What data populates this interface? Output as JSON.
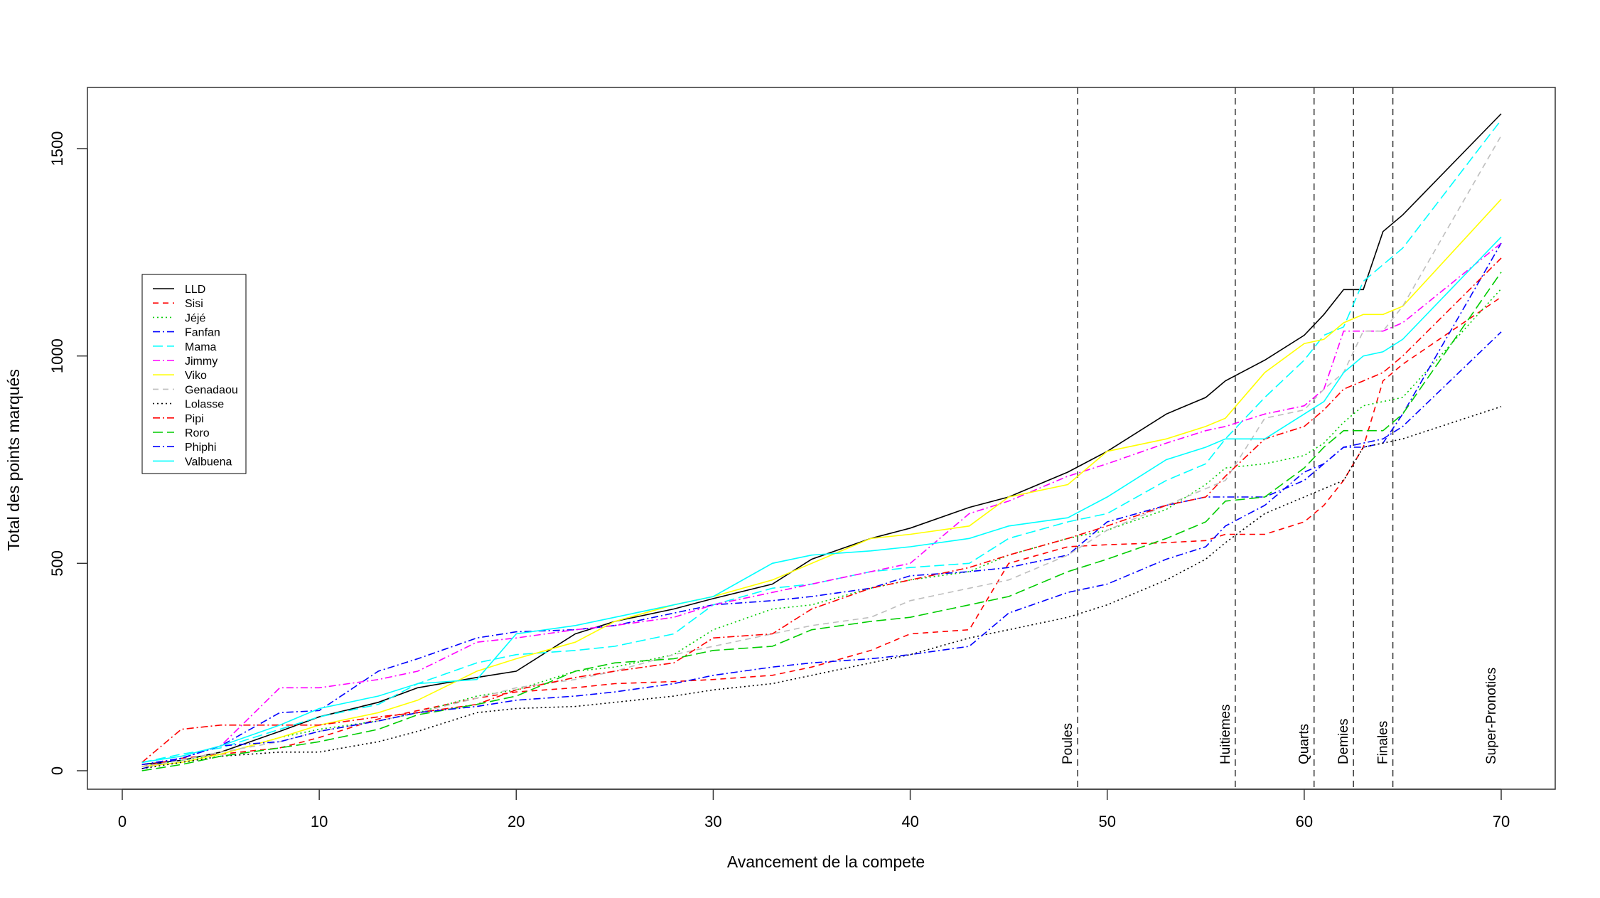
{
  "chart_data": {
    "type": "line",
    "title": "",
    "xlabel": "Avancement de la compete",
    "ylabel": "Total des points marqués",
    "xlim": [
      0,
      70
    ],
    "ylim": [
      0,
      1500
    ],
    "xticks": [
      0,
      10,
      20,
      30,
      40,
      50,
      60,
      70
    ],
    "yticks": [
      0,
      500,
      1000,
      1500
    ],
    "grid": false,
    "legend_position": "left, upper-middle",
    "phases": [
      {
        "label": "Poules",
        "x": 48.5
      },
      {
        "label": "Huitiemes",
        "x": 56.5
      },
      {
        "label": "Quarts",
        "x": 60.5
      },
      {
        "label": "Demies",
        "x": 62.5
      },
      {
        "label": "Finales",
        "x": 64.5
      },
      {
        "label": "Super-Pronotics",
        "x": 70
      }
    ],
    "x": [
      1,
      3,
      5,
      8,
      10,
      13,
      15,
      18,
      20,
      23,
      25,
      28,
      30,
      33,
      35,
      38,
      40,
      43,
      45,
      48,
      50,
      53,
      55,
      56,
      58,
      60,
      61,
      62,
      63,
      64,
      65,
      70
    ],
    "series": [
      {
        "name": "LLD",
        "color": "#000000",
        "dash": "",
        "values": [
          15,
          25,
          45,
          95,
          130,
          165,
          200,
          225,
          240,
          330,
          360,
          390,
          415,
          450,
          510,
          560,
          585,
          635,
          660,
          720,
          770,
          860,
          900,
          940,
          990,
          1050,
          1100,
          1160,
          1160,
          1300,
          1340,
          1584
        ]
      },
      {
        "name": "Sisi",
        "color": "#FF0000",
        "dash": "8,6",
        "values": [
          10,
          30,
          40,
          55,
          80,
          125,
          145,
          175,
          190,
          200,
          210,
          215,
          220,
          230,
          250,
          290,
          330,
          340,
          500,
          540,
          545,
          550,
          555,
          570,
          570,
          600,
          640,
          700,
          780,
          940,
          980,
          1142
        ]
      },
      {
        "name": "Jéjé",
        "color": "#00CC00",
        "dash": "2,4",
        "values": [
          10,
          25,
          40,
          80,
          100,
          120,
          140,
          180,
          195,
          240,
          250,
          280,
          340,
          390,
          400,
          440,
          460,
          480,
          520,
          560,
          580,
          630,
          690,
          730,
          740,
          760,
          790,
          840,
          880,
          890,
          900,
          1162
        ]
      },
      {
        "name": "Fanfan",
        "color": "#0000FF",
        "dash": "10,4,2,4",
        "values": [
          5,
          30,
          60,
          140,
          145,
          240,
          270,
          320,
          335,
          340,
          350,
          380,
          400,
          410,
          420,
          440,
          470,
          480,
          490,
          520,
          600,
          640,
          660,
          660,
          660,
          700,
          740,
          780,
          780,
          790,
          860,
          1272
        ]
      },
      {
        "name": "Mama",
        "color": "#00FFFF",
        "dash": "14,6",
        "values": [
          20,
          40,
          55,
          100,
          130,
          160,
          210,
          260,
          280,
          290,
          300,
          330,
          400,
          440,
          450,
          480,
          490,
          500,
          560,
          600,
          620,
          700,
          740,
          800,
          900,
          990,
          1050,
          1070,
          1180,
          1220,
          1260,
          1569
        ]
      },
      {
        "name": "Jimmy",
        "color": "#FF00FF",
        "dash": "10,4,2,4",
        "values": [
          15,
          30,
          60,
          200,
          200,
          220,
          240,
          310,
          320,
          340,
          350,
          370,
          400,
          430,
          450,
          480,
          500,
          620,
          650,
          710,
          740,
          790,
          820,
          830,
          860,
          880,
          920,
          1060,
          1060,
          1060,
          1080,
          1272
        ]
      },
      {
        "name": "Viko",
        "color": "#FFFF00",
        "dash": "",
        "values": [
          10,
          20,
          40,
          80,
          110,
          140,
          170,
          240,
          270,
          310,
          360,
          400,
          420,
          460,
          500,
          560,
          570,
          590,
          660,
          690,
          770,
          800,
          830,
          850,
          960,
          1030,
          1040,
          1080,
          1100,
          1100,
          1120,
          1378
        ]
      },
      {
        "name": "Genadaou",
        "color": "#BEBEBE",
        "dash": "8,6",
        "values": [
          10,
          25,
          45,
          70,
          95,
          120,
          140,
          175,
          200,
          220,
          240,
          280,
          300,
          330,
          350,
          370,
          410,
          440,
          460,
          520,
          580,
          640,
          680,
          700,
          850,
          870,
          920,
          960,
          1060,
          1060,
          1120,
          1531
        ]
      },
      {
        "name": "Lolasse",
        "color": "#000000",
        "dash": "2,4",
        "values": [
          5,
          20,
          35,
          45,
          45,
          70,
          95,
          140,
          150,
          155,
          165,
          180,
          195,
          210,
          230,
          260,
          280,
          320,
          340,
          370,
          400,
          460,
          510,
          550,
          620,
          660,
          680,
          700,
          780,
          790,
          800,
          878
        ]
      },
      {
        "name": "Pipi",
        "color": "#FF0000",
        "dash": "10,4,2,4",
        "values": [
          20,
          100,
          110,
          110,
          110,
          130,
          140,
          160,
          195,
          225,
          240,
          260,
          320,
          330,
          390,
          440,
          460,
          490,
          520,
          560,
          590,
          640,
          660,
          710,
          800,
          830,
          870,
          920,
          940,
          960,
          1000,
          1236
        ]
      },
      {
        "name": "Roro",
        "color": "#00CC00",
        "dash": "14,6",
        "values": [
          0,
          15,
          35,
          55,
          70,
          100,
          135,
          160,
          180,
          240,
          260,
          270,
          290,
          300,
          340,
          360,
          370,
          400,
          420,
          480,
          510,
          560,
          600,
          650,
          660,
          730,
          780,
          820,
          820,
          820,
          860,
          1202
        ]
      },
      {
        "name": "Phiphi",
        "color": "#0000FF",
        "dash": "10,4,2,4",
        "values": [
          15,
          30,
          60,
          70,
          95,
          120,
          140,
          155,
          170,
          180,
          190,
          210,
          230,
          250,
          260,
          270,
          280,
          300,
          380,
          430,
          450,
          510,
          540,
          590,
          640,
          720,
          740,
          780,
          790,
          800,
          830,
          1058
        ]
      },
      {
        "name": "Valbuena",
        "color": "#00FFFF",
        "dash": "",
        "values": [
          20,
          35,
          60,
          110,
          150,
          180,
          210,
          220,
          330,
          350,
          370,
          400,
          420,
          500,
          520,
          530,
          540,
          560,
          590,
          610,
          660,
          750,
          780,
          800,
          800,
          860,
          890,
          960,
          1000,
          1010,
          1040,
          1287
        ]
      }
    ]
  }
}
